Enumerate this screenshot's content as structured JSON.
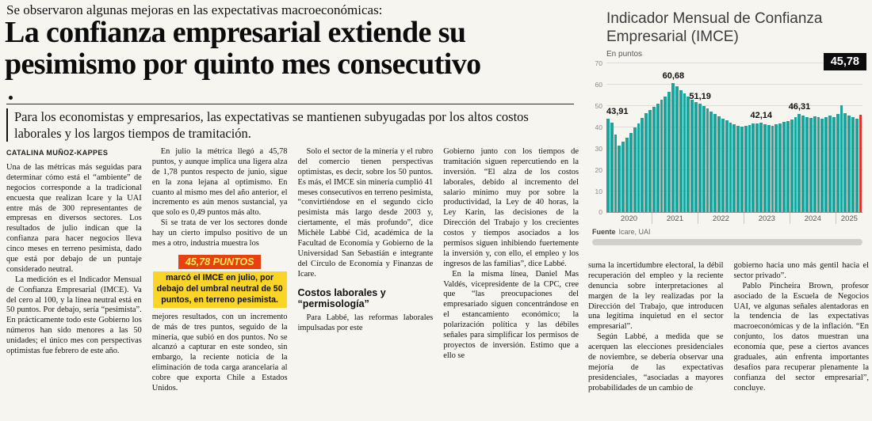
{
  "kicker": "Se observaron algunas mejoras en las expectativas macroeconómicas:",
  "headline": "La confianza empresarial extiende su pesimismo por quinto mes consecutivo",
  "deck": "Para los economistas y empresarios, las expectativas se mantienen subyugadas por los altos costos laborales y los largos tiempos de tramitación.",
  "byline": "CATALINA MUÑOZ-KAPPES",
  "callout": {
    "headline": "45,78 PUNTOS",
    "body": "marcó el IMCE en julio, por debajo del umbral neutral de 50 puntos, en terreno pesimista."
  },
  "body_columns": [
    {
      "blocks": [
        {
          "t": "byline"
        },
        {
          "t": "p",
          "indent": false,
          "text": "Una de las métricas más seguidas para determinar cómo está el “ambiente” de negocios corresponde a la tradicional encuesta que realizan Icare y la UAI entre más de 300 representantes de empresas en diversos sectores. Los resultados de julio indican que la confianza para hacer negocios lleva cinco meses en terreno pesimista, dado que está por debajo de un puntaje considerado neutral."
        },
        {
          "t": "p",
          "indent": true,
          "text": "La medición es el Indicador Mensual de Confianza Empresarial (IMCE). Va del cero al 100, y la línea neutral está en 50 puntos. Por debajo, sería “pesimista”. En prácticamente todo este Gobierno los números han sido menores a las 50 unidades; el único mes con perspectivas optimistas fue febrero de este año."
        }
      ]
    },
    {
      "blocks": [
        {
          "t": "p",
          "indent": true,
          "text": "En julio la métrica llegó a 45,78 puntos, y aunque implica una ligera alza de 1,78 puntos respecto de junio, sigue en la zona lejana al optimismo. En cuanto al mismo mes del año anterior, el incremento es aún menos sustancial, ya que solo es 0,49 puntos más alto."
        },
        {
          "t": "p",
          "indent": true,
          "text": "Si se trata de ver los sectores donde hay un cierto impulso positivo de un mes a otro, industria muestra los"
        },
        {
          "t": "callout"
        },
        {
          "t": "p",
          "indent": false,
          "text": "mejores resultados, con un incremento de más de tres puntos, seguido de la minería, que subió en dos puntos. No se alcanzó a capturar en este sondeo, sin embargo, la reciente noticia de la eliminación de toda carga arancelaria al cobre que exporta Chile a Estados Unidos."
        }
      ]
    },
    {
      "blocks": [
        {
          "t": "p",
          "indent": true,
          "text": "Solo el sector de la minería y el rubro del comercio tienen perspectivas optimistas, es decir, sobre los 50 puntos. Es más, el IMCE sin minería cumplió 41 meses consecutivos en terreno pesimista, “convirtiéndose en el segundo ciclo pesimista más largo desde 2003 y, ciertamente, el más profundo”, dice Michèle Labbé Cid, académica de la Facultad de Economía y Gobierno de la Universidad San Sebastián e integrante del Círculo de Economía y Finanzas de Icare."
        },
        {
          "t": "h3",
          "text": "Costos laborales y “permisología”"
        },
        {
          "t": "p",
          "indent": true,
          "text": "Para Labbé, las reformas laborales impulsadas por este"
        }
      ]
    },
    {
      "blocks": [
        {
          "t": "p",
          "indent": false,
          "text": "Gobierno junto con los tiempos de tramitación siguen repercutiendo en la inversión. “El alza de los costos laborales, debido al incremento del salario mínimo muy por sobre la productividad, la Ley de 40 horas, la Ley Karin, las decisiones de la Dirección del Trabajo y los crecientes costos y tiempos asociados a los permisos siguen inhibiendo fuertemente la inversión y, con ello, el empleo y los ingresos de las familias”, dice Labbé."
        },
        {
          "t": "p",
          "indent": true,
          "text": "En la misma línea, Daniel Mas Valdés, vicepresidente de la CPC, cree que “las preocupaciones del empresariado siguen concentrándose en el estancamiento económico; la polarización política y las débiles señales para simplificar los permisos de proyectos de inversión. Estimo que a ello se"
        }
      ]
    },
    {
      "blocks": [
        {
          "t": "p",
          "indent": false,
          "text": "suma la incertidumbre electoral, la débil recuperación del empleo y la reciente denuncia sobre interpretaciones al margen de la ley realizadas por la Dirección del Trabajo, que introducen una legítima inquietud en el sector empresarial”."
        },
        {
          "t": "p",
          "indent": true,
          "text": "Según Labbé, a medida que se acerquen las elecciones presidenciales de noviembre, se debería observar una mejoría de las expectativas presidenciales, “asociadas a mayores probabilidades de un cambio de"
        }
      ]
    },
    {
      "blocks": [
        {
          "t": "p",
          "indent": false,
          "text": "gobierno hacia uno más gentil hacia el sector privado”."
        },
        {
          "t": "p",
          "indent": true,
          "text": "Pablo Pincheira Brown, profesor asociado de la Escuela de Negocios UAI, ve algunas señales alentadoras en la tendencia de las expectativas macroeconómicas y de la inflación. “En conjunto, los datos muestran una economía que, pese a ciertos avances graduales, aún enfrenta importantes desafíos para recuperar plenamente la confianza del sector empresarial”, concluye."
        }
      ]
    }
  ],
  "chart_data": {
    "type": "bar",
    "title": "Indicador Mensual de Confianza Empresarial (IMCE)",
    "units_label": "En puntos",
    "source_label": "Fuente",
    "source_value": "Icare, UAI",
    "ylim": [
      0,
      70
    ],
    "yticks": [
      70,
      60,
      50,
      40,
      30,
      20,
      10,
      0
    ],
    "bar_color": "#1fa29a",
    "highlight_color": "#e2342b",
    "years": [
      {
        "label": "2020",
        "months": 12
      },
      {
        "label": "2021",
        "months": 12
      },
      {
        "label": "2022",
        "months": 12
      },
      {
        "label": "2023",
        "months": 12
      },
      {
        "label": "2024",
        "months": 12
      },
      {
        "label": "2025",
        "months": 7
      }
    ],
    "values": [
      43.91,
      42.3,
      36.8,
      31.5,
      33.2,
      35.1,
      37.4,
      39.8,
      42.0,
      44.3,
      46.5,
      48.2,
      49.5,
      51.2,
      53.0,
      54.6,
      56.8,
      60.68,
      59.2,
      57.5,
      56.0,
      54.4,
      53.1,
      52.0,
      51.19,
      50.2,
      48.9,
      47.5,
      46.3,
      45.2,
      44.1,
      43.2,
      42.3,
      41.5,
      40.8,
      40.2,
      40.6,
      41.2,
      41.8,
      42.0,
      42.14,
      41.6,
      41.0,
      40.6,
      41.3,
      41.9,
      42.5,
      43.1,
      43.8,
      45.0,
      46.31,
      45.6,
      44.9,
      44.3,
      45.29,
      44.8,
      44.2,
      44.9,
      45.4,
      44.7,
      46.2,
      50.4,
      46.8,
      45.5,
      44.8,
      44.0,
      45.78
    ],
    "highlight_index": 66,
    "annotations": [
      {
        "text": "43,91",
        "index": 0
      },
      {
        "text": "60,68",
        "index": 17
      },
      {
        "text": "51,19",
        "index": 24
      },
      {
        "text": "42,14",
        "index": 40
      },
      {
        "text": "46,31",
        "index": 50
      }
    ],
    "badge": {
      "text": "45,78"
    }
  }
}
